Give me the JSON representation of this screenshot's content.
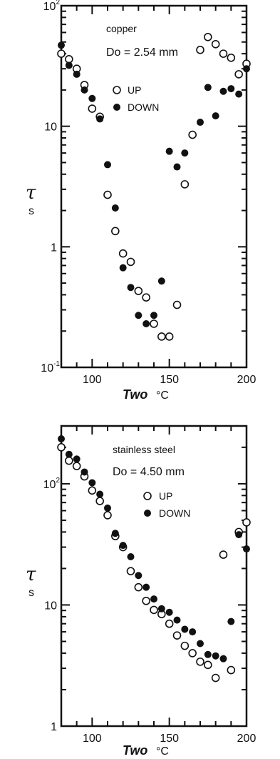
{
  "chart_data": [
    {
      "type": "scatter",
      "title": "",
      "annotations": [
        "copper",
        "Do = 2.54 mm"
      ],
      "xlabel": "Two",
      "xunit": "°C",
      "ylabel": "τ",
      "yunit": "s",
      "xlim": [
        80,
        200
      ],
      "ylim": [
        0.1,
        100
      ],
      "yscale": "log",
      "xticks": [
        100,
        150,
        200
      ],
      "yticks": [
        {
          "value": 0.1,
          "base": "10",
          "exp": "-1"
        },
        {
          "value": 1,
          "base": "1",
          "exp": ""
        },
        {
          "value": 10,
          "base": "10",
          "exp": ""
        },
        {
          "value": 100,
          "base": "10",
          "exp": "2"
        }
      ],
      "legend_position": "top-center",
      "series": [
        {
          "name": "UP",
          "marker": "open-circle",
          "x": [
            80,
            85,
            90,
            95,
            100,
            105,
            110,
            115,
            120,
            125,
            130,
            135,
            140,
            145,
            150,
            155,
            160,
            165,
            170,
            175,
            180,
            185,
            190,
            195,
            200
          ],
          "y": [
            40,
            36,
            30,
            22,
            14,
            12,
            2.7,
            1.35,
            0.88,
            0.75,
            0.43,
            0.38,
            0.23,
            0.18,
            0.18,
            0.33,
            3.3,
            8.5,
            43,
            55,
            48,
            40,
            37,
            27,
            33
          ]
        },
        {
          "name": "DOWN",
          "marker": "filled-circle",
          "x": [
            80,
            85,
            90,
            95,
            100,
            105,
            110,
            115,
            120,
            125,
            130,
            135,
            140,
            145,
            150,
            155,
            160,
            170,
            175,
            180,
            185,
            190,
            195,
            200
          ],
          "y": [
            47,
            32,
            27,
            20,
            17,
            11.5,
            4.8,
            2.1,
            0.67,
            0.46,
            0.27,
            0.23,
            0.27,
            0.52,
            6.2,
            4.6,
            6.0,
            10.8,
            21,
            12.2,
            19.5,
            20.5,
            18.5,
            30
          ]
        }
      ]
    },
    {
      "type": "scatter",
      "title": "",
      "annotations": [
        "stainless steel",
        "Do = 4.50 mm"
      ],
      "xlabel": "Two",
      "xunit": "°C",
      "ylabel": "τ",
      "yunit": "s",
      "xlim": [
        80,
        200
      ],
      "ylim": [
        1,
        300
      ],
      "yscale": "log",
      "xticks": [
        100,
        150,
        200
      ],
      "yticks": [
        {
          "value": 1,
          "base": "1",
          "exp": ""
        },
        {
          "value": 10,
          "base": "10",
          "exp": ""
        },
        {
          "value": 100,
          "base": "10",
          "exp": "2"
        }
      ],
      "legend_position": "top-center",
      "series": [
        {
          "name": "UP",
          "marker": "open-circle",
          "x": [
            80,
            85,
            90,
            95,
            100,
            105,
            110,
            115,
            120,
            125,
            130,
            135,
            140,
            145,
            150,
            155,
            160,
            165,
            170,
            175,
            180,
            185,
            190,
            195,
            200
          ],
          "y": [
            200,
            155,
            140,
            115,
            88,
            72,
            55,
            37,
            30,
            19,
            14,
            10.8,
            9.1,
            8.4,
            7,
            5.6,
            4.6,
            4.0,
            3.4,
            3.2,
            2.5,
            26,
            2.9,
            40,
            48
          ]
        },
        {
          "name": "DOWN",
          "marker": "filled-circle",
          "x": [
            80,
            85,
            90,
            95,
            100,
            105,
            110,
            115,
            120,
            125,
            130,
            135,
            140,
            145,
            150,
            155,
            160,
            165,
            170,
            175,
            180,
            185,
            190,
            195,
            200
          ],
          "y": [
            235,
            175,
            160,
            125,
            102,
            82,
            63,
            39,
            31,
            25,
            17.5,
            14,
            11.2,
            9.3,
            8.7,
            7.5,
            6.3,
            6.0,
            4.8,
            3.9,
            3.8,
            3.6,
            7.3,
            38,
            29
          ]
        }
      ]
    }
  ]
}
